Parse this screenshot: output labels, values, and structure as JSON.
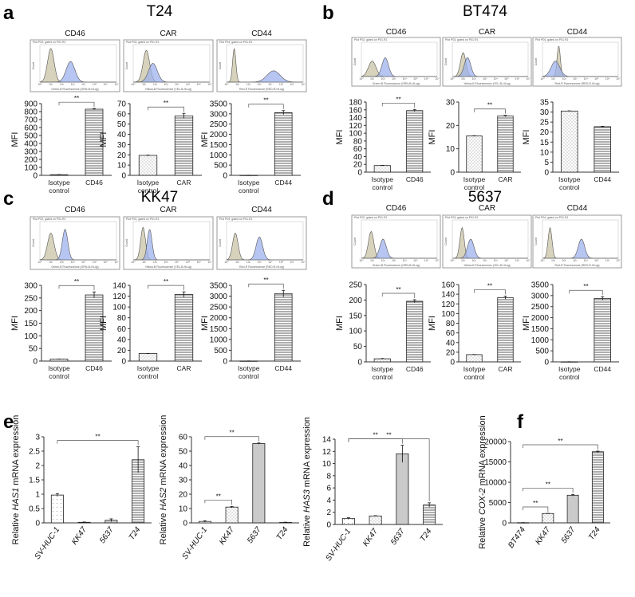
{
  "chart_data": {
    "type": "bar",
    "colors": {
      "isotype_histogram": "#c9c3a6",
      "marker_histogram": "#9db1ec",
      "bar_stroke": "#222222"
    },
    "flow_panels": [
      {
        "label": "a",
        "title": "T24",
        "histograms": [
          {
            "title": "CD46",
            "header": "Plot P02, gated on P01.R1",
            "xlabel": "Green-B Fluorescence (GRN-B-HLog)",
            "ylabel": "Count",
            "isotype_peak_log": 1.0,
            "isotype_height": 0.9,
            "isotype_width": 0.3,
            "marker_peak_log": 2.8,
            "marker_height": 0.55,
            "marker_width": 0.4
          },
          {
            "title": "CAR",
            "header": "Plot P03, gated on P01.R1",
            "xlabel": "Yellow-B Fluorescence (YEL-B-HLog)",
            "ylabel": "Count",
            "isotype_peak_log": 1.2,
            "isotype_height": 0.85,
            "isotype_width": 0.3,
            "marker_peak_log": 1.8,
            "marker_height": 0.5,
            "marker_width": 0.4
          },
          {
            "title": "CD44",
            "header": "Plot P04, gated on P01.R1",
            "xlabel": "Red-R Fluorescence (RED-R-HLog)",
            "ylabel": "Count",
            "isotype_peak_log": 0.7,
            "isotype_height": 0.9,
            "isotype_width": 0.15,
            "marker_peak_log": 4.3,
            "marker_height": 0.3,
            "marker_width": 0.6
          }
        ],
        "bars": [
          {
            "ylabel": "MFI",
            "categories": [
              [
                "Isotype",
                "control"
              ],
              [
                "CD46"
              ]
            ],
            "values": [
              8,
              830
            ],
            "errors": [
              1,
              8
            ],
            "ylim": [
              0,
              900
            ],
            "step": 100,
            "patterns": [
              "dots",
              "lines"
            ],
            "significance": [
              {
                "from": 0,
                "to": 1,
                "label": "**"
              }
            ]
          },
          {
            "ylabel": "MFI",
            "categories": [
              [
                "Isotype",
                "control"
              ],
              [
                "CAR"
              ]
            ],
            "values": [
              19.5,
              58
            ],
            "errors": [
              0.3,
              2.5
            ],
            "ylim": [
              0,
              70
            ],
            "step": 10,
            "patterns": [
              "dots",
              "lines"
            ],
            "significance": [
              {
                "from": 0,
                "to": 1,
                "label": "**"
              }
            ]
          },
          {
            "ylabel": "MFI",
            "categories": [
              [
                "Isotype",
                "control"
              ],
              [
                "CD44"
              ]
            ],
            "values": [
              5,
              3060
            ],
            "errors": [
              2,
              100
            ],
            "ylim": [
              0,
              3500
            ],
            "step": 500,
            "patterns": [
              "dots",
              "lines"
            ],
            "significance": [
              {
                "from": 0,
                "to": 1,
                "label": "**"
              }
            ]
          }
        ]
      },
      {
        "label": "b",
        "title": "BT474",
        "histograms": [
          {
            "title": "CD46",
            "header": "Plot P02, gated on P01.R1",
            "xlabel": "Green-B Fluorescence (GRN-B-HLog)",
            "ylabel": "Count",
            "isotype_peak_log": 1.0,
            "isotype_height": 0.45,
            "isotype_width": 0.35,
            "marker_peak_log": 2.2,
            "marker_height": 0.55,
            "marker_width": 0.3
          },
          {
            "title": "CAR",
            "header": "Plot P03, gated on P01.R1",
            "xlabel": "Yellow-B Fluorescence (YEL-B-HLog)",
            "ylabel": "Count",
            "isotype_peak_log": 1.0,
            "isotype_height": 0.7,
            "isotype_width": 0.25,
            "marker_peak_log": 1.4,
            "marker_height": 0.55,
            "marker_width": 0.3
          },
          {
            "title": "CD44",
            "header": "Plot P04, gated on P01.R1",
            "xlabel": "Red-R Fluorescence (RED-R-HLog)",
            "ylabel": "Count",
            "isotype_peak_log": 1.5,
            "isotype_height": 0.9,
            "isotype_width": 0.15,
            "marker_peak_log": 1.2,
            "marker_height": 0.45,
            "marker_width": 0.4
          }
        ],
        "bars": [
          {
            "ylabel": "MFI",
            "categories": [
              [
                "Isotype",
                "control"
              ],
              [
                "CD46"
              ]
            ],
            "values": [
              17,
              158
            ],
            "errors": [
              0.5,
              3
            ],
            "ylim": [
              0,
              180
            ],
            "step": 20,
            "patterns": [
              "dots",
              "lines"
            ],
            "significance": [
              {
                "from": 0,
                "to": 1,
                "label": "**"
              }
            ]
          },
          {
            "ylabel": "MFI",
            "categories": [
              [
                "Isotype",
                "control"
              ],
              [
                "CAR"
              ]
            ],
            "values": [
              15.5,
              24
            ],
            "errors": [
              0.1,
              0.3
            ],
            "ylim": [
              0,
              30
            ],
            "step": 10,
            "patterns": [
              "dots",
              "lines"
            ],
            "significance": [
              {
                "from": 0,
                "to": 1,
                "label": "**"
              }
            ]
          },
          {
            "ylabel": "MFI",
            "categories": [
              [
                "Isotype",
                "control"
              ],
              [
                "CD44"
              ]
            ],
            "values": [
              30.5,
              22.7
            ],
            "errors": [
              0.1,
              0.2
            ],
            "ylim": [
              0,
              35
            ],
            "step": 5,
            "patterns": [
              "dots",
              "lines"
            ],
            "significance": []
          }
        ]
      },
      {
        "label": "c",
        "title": "KK47",
        "histograms": [
          {
            "title": "CD46",
            "header": "Plot P02, gated on P01.R1",
            "xlabel": "Green-B Fluorescence (GRN-B-HLog)",
            "ylabel": "Count",
            "isotype_peak_log": 1.0,
            "isotype_height": 0.7,
            "isotype_width": 0.3,
            "marker_peak_log": 2.3,
            "marker_height": 0.8,
            "marker_width": 0.25
          },
          {
            "title": "CAR",
            "header": "Plot P03, gated on P01.R1",
            "xlabel": "Yellow-B Fluorescence (YEL-B-HLog)",
            "ylabel": "Count",
            "isotype_peak_log": 0.9,
            "isotype_height": 0.85,
            "isotype_width": 0.22,
            "marker_peak_log": 1.5,
            "marker_height": 0.8,
            "marker_width": 0.22
          },
          {
            "title": "CD44",
            "header": "Plot P04, gated on P01.R1",
            "xlabel": "Red-R Fluorescence (RED-R-HLog)",
            "ylabel": "Count",
            "isotype_peak_log": 0.8,
            "isotype_height": 0.7,
            "isotype_width": 0.25,
            "marker_peak_log": 3.0,
            "marker_height": 0.6,
            "marker_width": 0.3
          }
        ],
        "bars": [
          {
            "ylabel": "MFI",
            "categories": [
              [
                "Isotype",
                "control"
              ],
              [
                "CD46"
              ]
            ],
            "values": [
              8,
              262
            ],
            "errors": [
              0.5,
              12
            ],
            "ylim": [
              0,
              300
            ],
            "step": 50,
            "patterns": [
              "dots",
              "lines"
            ],
            "significance": [
              {
                "from": 0,
                "to": 1,
                "label": "**"
              }
            ]
          },
          {
            "ylabel": "MFI",
            "categories": [
              [
                "Isotype",
                "control"
              ],
              [
                "CAR"
              ]
            ],
            "values": [
              14,
              123
            ],
            "errors": [
              0.3,
              5
            ],
            "ylim": [
              0,
              140
            ],
            "step": 20,
            "patterns": [
              "dots",
              "lines"
            ],
            "significance": [
              {
                "from": 0,
                "to": 1,
                "label": "**"
              }
            ]
          },
          {
            "ylabel": "MFI",
            "categories": [
              [
                "Isotype",
                "control"
              ],
              [
                "CD44"
              ]
            ],
            "values": [
              5,
              3120
            ],
            "errors": [
              2,
              150
            ],
            "ylim": [
              0,
              3500
            ],
            "step": 500,
            "patterns": [
              "dots",
              "lines"
            ],
            "significance": [
              {
                "from": 0,
                "to": 1,
                "label": "**"
              }
            ]
          }
        ]
      },
      {
        "label": "d",
        "title": "5637",
        "histograms": [
          {
            "title": "CD46",
            "header": "Plot P02, gated on P01.R1",
            "xlabel": "Green-B Fluorescence (GRN-B-HLog)",
            "ylabel": "Count",
            "isotype_peak_log": 0.9,
            "isotype_height": 0.7,
            "isotype_width": 0.25,
            "marker_peak_log": 2.0,
            "marker_height": 0.5,
            "marker_width": 0.3
          },
          {
            "title": "CAR",
            "header": "Plot P03, gated on P01.R1",
            "xlabel": "Yellow-B Fluorescence (YEL-B-HLog)",
            "ylabel": "Count",
            "isotype_peak_log": 0.9,
            "isotype_height": 0.8,
            "isotype_width": 0.2,
            "marker_peak_log": 1.7,
            "marker_height": 0.5,
            "marker_width": 0.3
          },
          {
            "title": "CD44",
            "header": "Plot P04, gated on P01.R1",
            "xlabel": "Red-R Fluorescence (RED-R-HLog)",
            "ylabel": "Count",
            "isotype_peak_log": 0.7,
            "isotype_height": 0.8,
            "isotype_width": 0.18,
            "marker_peak_log": 3.6,
            "marker_height": 0.5,
            "marker_width": 0.3
          }
        ],
        "bars": [
          {
            "ylabel": "MFI",
            "categories": [
              [
                "Isotype",
                "control"
              ],
              [
                "CD46"
              ]
            ],
            "values": [
              10,
              196
            ],
            "errors": [
              1,
              5
            ],
            "ylim": [
              0,
              250
            ],
            "step": 50,
            "patterns": [
              "dots",
              "lines"
            ],
            "significance": [
              {
                "from": 0,
                "to": 1,
                "label": "**"
              }
            ]
          },
          {
            "ylabel": "MFI",
            "categories": [
              [
                "Isotype",
                "control"
              ],
              [
                "CAR"
              ]
            ],
            "values": [
              15,
              133
            ],
            "errors": [
              0.3,
              3
            ],
            "ylim": [
              0,
              160
            ],
            "step": 20,
            "patterns": [
              "dots",
              "lines"
            ],
            "significance": [
              {
                "from": 0,
                "to": 1,
                "label": "**"
              }
            ]
          },
          {
            "ylabel": "MFI",
            "categories": [
              [
                "Isotype",
                "control"
              ],
              [
                "CD44"
              ]
            ],
            "values": [
              5,
              2870
            ],
            "errors": [
              2,
              80
            ],
            "ylim": [
              0,
              3500
            ],
            "step": 500,
            "patterns": [
              "dots",
              "lines"
            ],
            "significance": [
              {
                "from": 0,
                "to": 1,
                "label": "**"
              }
            ]
          }
        ]
      }
    ],
    "expression_panels": [
      {
        "label": "e",
        "charts": [
          {
            "ylabel": {
              "prefix": "Relative ",
              "gene": "HAS1",
              "suffix": " mRNA expression"
            },
            "categories": [
              "SV-HUC-1",
              "KK47",
              "5637",
              "T24"
            ],
            "values": [
              0.97,
              0.02,
              0.09,
              2.2
            ],
            "errors": [
              0.05,
              0.01,
              0.05,
              0.45
            ],
            "ylim": [
              0,
              3
            ],
            "step": 0.5,
            "patterns": [
              "sparse",
              "dots",
              "dense",
              "lines"
            ],
            "significance": [
              {
                "from": 0,
                "to": 3,
                "label": "**"
              }
            ]
          },
          {
            "ylabel": {
              "prefix": "Relative ",
              "gene": "HAS2",
              "suffix": " mRNA expression"
            },
            "categories": [
              "SV-HUC-1",
              "KK47",
              "5637",
              "T24"
            ],
            "values": [
              1,
              11,
              55.3,
              0.3
            ],
            "errors": [
              0.5,
              0.5,
              0.4,
              0.2
            ],
            "ylim": [
              0,
              60
            ],
            "step": 10,
            "patterns": [
              "sparse",
              "dots",
              "dense",
              "lines"
            ],
            "significance": [
              {
                "from": 0,
                "to": 1,
                "label": "**"
              },
              {
                "from": 0,
                "to": 2,
                "label": "**"
              }
            ]
          },
          {
            "ylabel": {
              "prefix": "Relative ",
              "gene": "HAS3",
              "suffix": " mRNA expression"
            },
            "categories": [
              "SV-HUC-1",
              "KK47",
              "5637",
              "T24"
            ],
            "values": [
              1,
              1.4,
              11.6,
              3.2
            ],
            "errors": [
              0.1,
              0.05,
              1.4,
              0.35
            ],
            "ylim": [
              0,
              14
            ],
            "step": 2,
            "patterns": [
              "sparse",
              "dots",
              "dense",
              "lines"
            ],
            "significance": [
              {
                "from": 0,
                "to": 2,
                "label": "**"
              },
              {
                "from": 0,
                "to": 3,
                "label": "**"
              }
            ]
          }
        ]
      },
      {
        "label": "f",
        "charts": [
          {
            "ylabel": {
              "prefix": "Relative ",
              "gene": "COX-2",
              "suffix": " mRNA expression"
            },
            "categories": [
              "BT474",
              "KK47",
              "5637",
              "T24"
            ],
            "values": [
              50,
              2300,
              6800,
              17500
            ],
            "errors": [
              10,
              50,
              200,
              150
            ],
            "ylim": [
              0,
              20000
            ],
            "step": 5000,
            "patterns": [
              "plain",
              "dots",
              "dense",
              "lines"
            ],
            "significance": [
              {
                "from": 0,
                "to": 1,
                "label": "**"
              },
              {
                "from": 0,
                "to": 2,
                "label": "**"
              },
              {
                "from": 0,
                "to": 3,
                "label": "**"
              }
            ]
          }
        ]
      }
    ]
  }
}
